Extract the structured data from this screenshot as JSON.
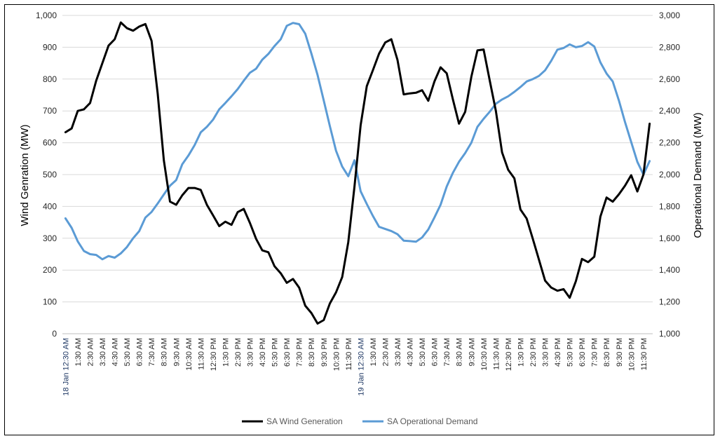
{
  "chart_data": {
    "type": "line",
    "title": "",
    "ylabel": "Wind Genration (MW)",
    "y2label": "Operational Demand (MW)",
    "ylim": [
      0,
      1000
    ],
    "y2lim": [
      1000,
      3000
    ],
    "yticks": [
      "0",
      "100",
      "200",
      "300",
      "400",
      "500",
      "600",
      "700",
      "800",
      "900",
      "1,000"
    ],
    "y2ticks": [
      "1,000",
      "1,200",
      "1,400",
      "1,600",
      "1,800",
      "2,000",
      "2,200",
      "2,400",
      "2,600",
      "2,800",
      "3,000"
    ],
    "grid": true,
    "legend": "bottom",
    "x_labels": [
      "18 Jan 12:30 AM",
      "1:30 AM",
      "2:30 AM",
      "3:30 AM",
      "4:30 AM",
      "5:30 AM",
      "6:30 AM",
      "7:30 AM",
      "8:30 AM",
      "9:30 AM",
      "10:30 AM",
      "11:30 AM",
      "12:30 PM",
      "1:30 PM",
      "2:30 PM",
      "3:30 PM",
      "4:30 PM",
      "5:30 PM",
      "6:30 PM",
      "7:30 PM",
      "8:30 PM",
      "9:30 PM",
      "10:30 PM",
      "11:30 PM",
      "19 Jan 12:30 AM",
      "1:30 AM",
      "2:30 AM",
      "3:30 AM",
      "4:30 AM",
      "5:30 AM",
      "6:30 AM",
      "7:30 AM",
      "8:30 AM",
      "9:30 AM",
      "10:30 AM",
      "11:30 AM",
      "12:30 PM",
      "1:30 PM",
      "2:30 PM",
      "3:30 PM",
      "4:30 PM",
      "5:30 PM",
      "6:30 PM",
      "7:30 PM",
      "8:30 PM",
      "9:30 PM",
      "10:30 PM",
      "11:30 PM"
    ],
    "series": [
      {
        "name": "SA Wind Generation",
        "axis": "left",
        "color": "#000000",
        "values": [
          633,
          645,
          700,
          705,
          725,
          795,
          850,
          905,
          925,
          978,
          960,
          952,
          965,
          973,
          920,
          755,
          545,
          415,
          405,
          435,
          458,
          458,
          452,
          405,
          372,
          338,
          352,
          342,
          382,
          392,
          348,
          298,
          262,
          256,
          212,
          190,
          160,
          172,
          145,
          88,
          65,
          32,
          43,
          95,
          130,
          178,
          288,
          462,
          655,
          778,
          828,
          880,
          915,
          925,
          860,
          752,
          755,
          757,
          765,
          732,
          792,
          837,
          818,
          737,
          660,
          697,
          807,
          890,
          893,
          795,
          700,
          570,
          515,
          488,
          390,
          362,
          298,
          233,
          167,
          145,
          135,
          140,
          113,
          165,
          235,
          225,
          242,
          368,
          428,
          415,
          438,
          465,
          498,
          447,
          500,
          660
        ]
      },
      {
        "name": "SA Operational Demand",
        "axis": "right",
        "color": "#5b9bd5",
        "values": [
          1725,
          1665,
          1580,
          1520,
          1500,
          1495,
          1468,
          1488,
          1478,
          1505,
          1545,
          1600,
          1645,
          1730,
          1765,
          1818,
          1875,
          1930,
          1965,
          2065,
          2120,
          2185,
          2265,
          2300,
          2345,
          2410,
          2450,
          2492,
          2537,
          2590,
          2640,
          2665,
          2722,
          2758,
          2808,
          2850,
          2935,
          2953,
          2945,
          2885,
          2760,
          2625,
          2465,
          2305,
          2150,
          2050,
          1990,
          2090,
          1895,
          1815,
          1740,
          1672,
          1658,
          1645,
          1625,
          1585,
          1582,
          1578,
          1605,
          1655,
          1730,
          1810,
          1925,
          2010,
          2080,
          2135,
          2200,
          2300,
          2350,
          2395,
          2445,
          2472,
          2492,
          2520,
          2550,
          2585,
          2600,
          2620,
          2655,
          2715,
          2785,
          2795,
          2818,
          2800,
          2808,
          2832,
          2805,
          2705,
          2635,
          2585,
          2465,
          2330,
          2205,
          2080,
          2000,
          2085
        ]
      }
    ]
  }
}
